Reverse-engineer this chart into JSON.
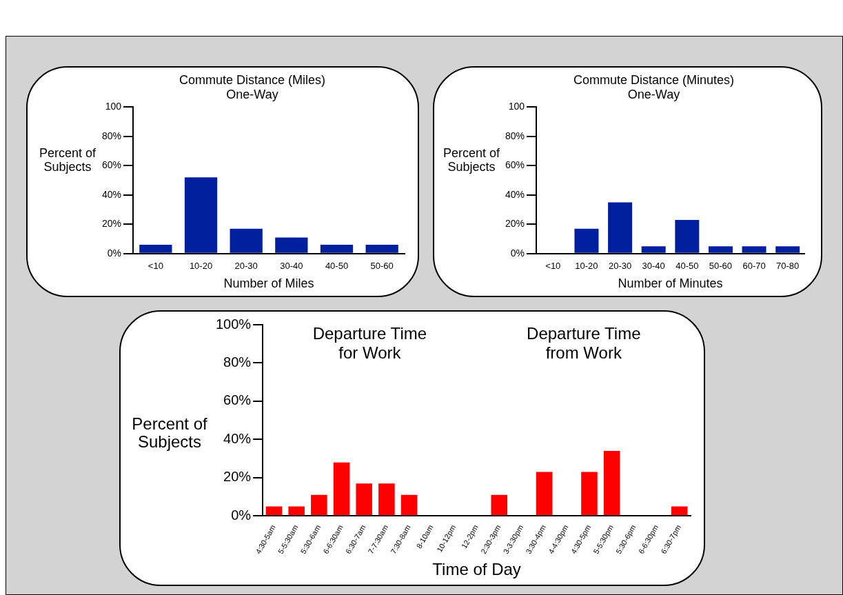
{
  "chart_data": [
    {
      "type": "bar",
      "title": "Commute Distance (Miles)",
      "subtitle": "One-Way",
      "xlabel": "Number of Miles",
      "ylabel": "Percent of Subjects",
      "categories": [
        "<10",
        "10-20",
        "20-30",
        "30-40",
        "40-50",
        "50-60"
      ],
      "values": [
        6,
        52,
        17,
        11,
        6,
        6
      ],
      "color": "#00209f",
      "ylim": [
        0,
        100
      ],
      "yticks": [
        {
          "value": 0,
          "label": "0%"
        },
        {
          "value": 20,
          "label": "20%"
        },
        {
          "value": 40,
          "label": "40%"
        },
        {
          "value": 60,
          "label": "60%"
        },
        {
          "value": 80,
          "label": "80%"
        },
        100
      ]
    },
    {
      "type": "bar",
      "title": "Commute Distance (Minutes)",
      "subtitle": "One-Way",
      "xlabel": "Number of Minutes",
      "ylabel": "Percent of Subjects",
      "categories": [
        "<10",
        "10-20",
        "20-30",
        "30-40",
        "40-50",
        "50-60",
        "60-70",
        "70-80"
      ],
      "values": [
        0,
        17,
        35,
        5,
        23,
        5,
        5,
        5
      ],
      "color": "#00209f",
      "ylim": [
        0,
        100
      ],
      "yticks": [
        {
          "value": 0,
          "label": "0%"
        },
        {
          "value": 20,
          "label": "20%"
        },
        {
          "value": 40,
          "label": "40%"
        },
        {
          "value": 60,
          "label": "60%"
        },
        {
          "value": 80,
          "label": "80%"
        },
        100
      ]
    },
    {
      "type": "bar",
      "xlabel": "Time of Day",
      "ylabel": "Percent of Subjects",
      "annotations": [
        "Departure Time for Work",
        "Departure Time from Work"
      ],
      "categories": [
        "4:30-5am",
        "5-5:30am",
        "5:30-6am",
        "6-6:30am",
        "6:30-7am",
        "7-7:30am",
        "7:30-8am",
        "8-10am",
        "10-12pm",
        "12-2pm",
        "2:30-3pm",
        "3-3:30pm",
        "3:30-4pm",
        "4-4:30pm",
        "4:30-5pm",
        "5-5:30pm",
        "5:30-6pm",
        "6-6:30pm",
        "6:30-7pm"
      ],
      "values": [
        5,
        5,
        11,
        28,
        17,
        17,
        11,
        null,
        null,
        null,
        11,
        null,
        23,
        null,
        23,
        34,
        null,
        null,
        5
      ],
      "color": "#ff0000",
      "ylim": [
        0,
        100
      ],
      "yticks": [
        {
          "value": 0,
          "label": "0%"
        },
        {
          "value": 20,
          "label": "20%"
        },
        {
          "value": 40,
          "label": "40%"
        },
        {
          "value": 60,
          "label": "60%"
        },
        {
          "value": 80,
          "label": "80%"
        },
        {
          "value": 100,
          "label": "100%"
        }
      ]
    }
  ]
}
